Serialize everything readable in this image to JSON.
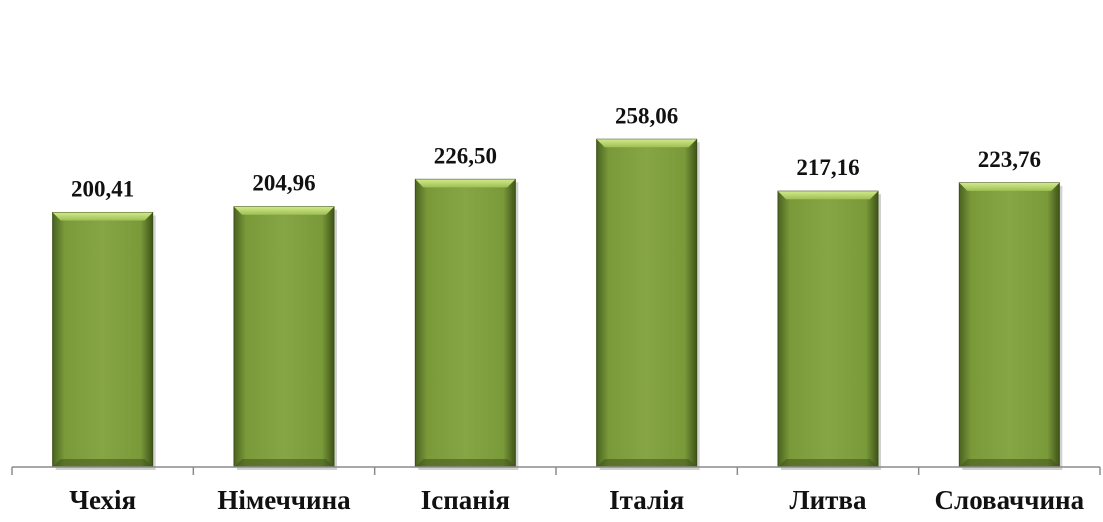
{
  "chart_data": {
    "type": "bar",
    "title": "",
    "xlabel": "",
    "ylabel": "",
    "categories": [
      "Чехія",
      "Німеччина",
      "Іспанія",
      "Італія",
      "Литва",
      "Словаччина"
    ],
    "values": [
      200.41,
      204.96,
      226.5,
      258.06,
      217.16,
      223.76
    ],
    "value_labels": [
      "200,41",
      "204,96",
      "226,50",
      "258,06",
      "217,16",
      "223,76"
    ],
    "ylim": [
      0,
      270
    ],
    "grid": false,
    "legend": "none",
    "colors": {
      "bar": "#7a9a3a",
      "bar_light": "#b5d36a",
      "bar_dark": "#3f5418",
      "axis": "#8c8c8c"
    }
  }
}
